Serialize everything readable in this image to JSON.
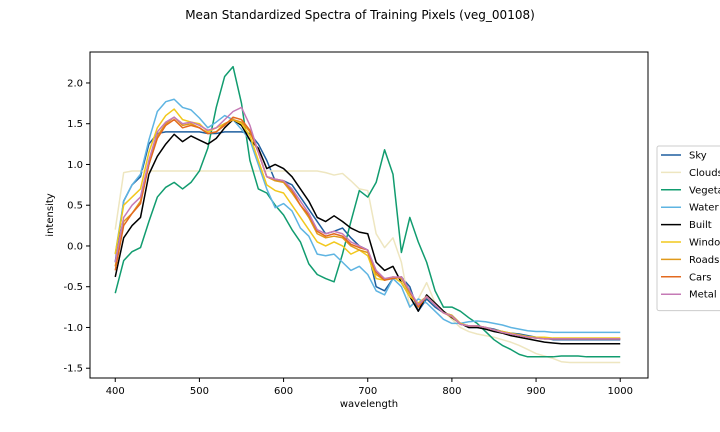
{
  "chart_data": {
    "type": "line",
    "title": "Mean Standardized Spectra of Training Pixels (veg_00108)",
    "xlabel": "wavelength",
    "ylabel": "intensity",
    "xlim": [
      370,
      1033
    ],
    "ylim": [
      -1.62,
      2.38
    ],
    "xticks": [
      400,
      500,
      600,
      700,
      800,
      900,
      1000
    ],
    "yticks": [
      -1.5,
      -1.0,
      -0.5,
      0.0,
      0.5,
      1.0,
      1.5,
      2.0
    ],
    "legend_position": "right",
    "grid": false,
    "x": [
      400,
      410,
      420,
      430,
      440,
      450,
      460,
      470,
      480,
      490,
      500,
      510,
      520,
      530,
      540,
      550,
      560,
      570,
      580,
      590,
      600,
      610,
      620,
      630,
      640,
      650,
      660,
      670,
      680,
      690,
      700,
      710,
      720,
      730,
      740,
      750,
      760,
      770,
      780,
      790,
      800,
      810,
      820,
      830,
      840,
      850,
      860,
      870,
      880,
      890,
      900,
      910,
      920,
      930,
      940,
      950,
      960,
      970,
      980,
      990,
      1000
    ],
    "series": [
      {
        "name": "Sky",
        "color": "#1f5f9f",
        "values": [
          -0.2,
          0.55,
          0.75,
          0.85,
          1.25,
          1.38,
          1.4,
          1.4,
          1.4,
          1.4,
          1.4,
          1.38,
          1.38,
          1.4,
          1.4,
          1.4,
          1.38,
          1.25,
          1.05,
          0.8,
          0.8,
          0.75,
          0.6,
          0.45,
          0.3,
          0.15,
          0.18,
          0.22,
          0.1,
          0.0,
          -0.05,
          -0.5,
          -0.55,
          -0.4,
          -0.38,
          -0.5,
          -0.8,
          -0.65,
          -0.75,
          -0.82,
          -0.85,
          -0.95,
          -1.0,
          -1.0,
          -1.0,
          -1.02,
          -1.05,
          -1.07,
          -1.08,
          -1.1,
          -1.12,
          -1.13,
          -1.15,
          -1.15,
          -1.15,
          -1.15,
          -1.15,
          -1.15,
          -1.15,
          -1.15,
          -1.15
        ]
      },
      {
        "name": "Clouds",
        "color": "#eee6c0",
        "values": [
          0.2,
          0.9,
          0.92,
          0.92,
          0.92,
          0.92,
          0.92,
          0.92,
          0.92,
          0.92,
          0.92,
          0.92,
          0.92,
          0.92,
          0.92,
          0.92,
          0.92,
          0.92,
          0.92,
          0.92,
          0.92,
          0.92,
          0.92,
          0.92,
          0.92,
          0.9,
          0.87,
          0.89,
          0.8,
          0.7,
          0.68,
          0.15,
          -0.02,
          0.1,
          -0.2,
          -0.75,
          -0.65,
          -0.45,
          -0.7,
          -0.8,
          -0.9,
          -1.0,
          -1.05,
          -1.08,
          -1.1,
          -1.12,
          -1.15,
          -1.18,
          -1.22,
          -1.27,
          -1.32,
          -1.35,
          -1.38,
          -1.42,
          -1.43,
          -1.43,
          -1.43,
          -1.43,
          -1.43,
          -1.43,
          -1.43
        ]
      },
      {
        "name": "Vegetation",
        "color": "#119c6f",
        "values": [
          -0.58,
          -0.18,
          -0.07,
          -0.02,
          0.3,
          0.6,
          0.72,
          0.78,
          0.7,
          0.78,
          0.92,
          1.2,
          1.7,
          2.08,
          2.2,
          1.75,
          1.05,
          0.7,
          0.65,
          0.5,
          0.38,
          0.2,
          0.05,
          -0.22,
          -0.35,
          -0.4,
          -0.44,
          -0.1,
          0.3,
          0.68,
          0.6,
          0.78,
          1.18,
          0.88,
          -0.08,
          0.35,
          0.05,
          -0.2,
          -0.55,
          -0.75,
          -0.75,
          -0.8,
          -0.88,
          -0.95,
          -1.05,
          -1.15,
          -1.22,
          -1.27,
          -1.33,
          -1.36,
          -1.36,
          -1.36,
          -1.36,
          -1.35,
          -1.35,
          -1.35,
          -1.36,
          -1.36,
          -1.36,
          -1.36,
          -1.36
        ]
      },
      {
        "name": "Water",
        "color": "#5eb4e2",
        "values": [
          -0.1,
          0.55,
          0.75,
          0.88,
          1.3,
          1.65,
          1.77,
          1.8,
          1.7,
          1.67,
          1.57,
          1.45,
          1.52,
          1.6,
          1.55,
          1.43,
          1.3,
          1.0,
          0.7,
          0.47,
          0.52,
          0.43,
          0.22,
          0.12,
          -0.1,
          -0.12,
          -0.1,
          -0.2,
          -0.3,
          -0.25,
          -0.35,
          -0.55,
          -0.6,
          -0.4,
          -0.5,
          -0.75,
          -0.65,
          -0.7,
          -0.8,
          -0.9,
          -0.95,
          -0.95,
          -0.93,
          -0.92,
          -0.93,
          -0.95,
          -0.97,
          -1.0,
          -1.02,
          -1.04,
          -1.05,
          -1.05,
          -1.06,
          -1.06,
          -1.06,
          -1.06,
          -1.06,
          -1.06,
          -1.06,
          -1.06,
          -1.06
        ]
      },
      {
        "name": "Built",
        "color": "#000000",
        "values": [
          -0.38,
          0.1,
          0.25,
          0.35,
          0.88,
          1.1,
          1.25,
          1.37,
          1.28,
          1.35,
          1.3,
          1.25,
          1.32,
          1.45,
          1.55,
          1.48,
          1.3,
          1.2,
          0.95,
          1.0,
          0.95,
          0.85,
          0.7,
          0.55,
          0.35,
          0.3,
          0.37,
          0.3,
          0.22,
          0.17,
          0.15,
          -0.2,
          -0.3,
          -0.25,
          -0.45,
          -0.62,
          -0.8,
          -0.6,
          -0.7,
          -0.8,
          -0.88,
          -0.95,
          -1.0,
          -1.0,
          -1.02,
          -1.05,
          -1.07,
          -1.1,
          -1.12,
          -1.14,
          -1.16,
          -1.18,
          -1.19,
          -1.2,
          -1.2,
          -1.2,
          -1.2,
          -1.2,
          -1.2,
          -1.2,
          -1.2
        ]
      },
      {
        "name": "Windows",
        "color": "#f2c81d",
        "values": [
          -0.1,
          0.5,
          0.6,
          0.7,
          1.15,
          1.45,
          1.6,
          1.68,
          1.55,
          1.52,
          1.5,
          1.4,
          1.45,
          1.5,
          1.55,
          1.5,
          1.35,
          1.05,
          0.75,
          0.68,
          0.65,
          0.5,
          0.35,
          0.2,
          0.05,
          0.0,
          0.05,
          0.0,
          -0.1,
          -0.05,
          -0.12,
          -0.4,
          -0.42,
          -0.38,
          -0.45,
          -0.62,
          -0.7,
          -0.62,
          -0.72,
          -0.82,
          -0.85,
          -0.95,
          -0.98,
          -0.98,
          -1.0,
          -1.03,
          -1.05,
          -1.07,
          -1.09,
          -1.11,
          -1.12,
          -1.12,
          -1.13,
          -1.13,
          -1.13,
          -1.13,
          -1.13,
          -1.13,
          -1.13,
          -1.13,
          -1.13
        ]
      },
      {
        "name": "Roads",
        "color": "#e09a1b",
        "values": [
          -0.25,
          0.3,
          0.4,
          0.55,
          1.0,
          1.35,
          1.5,
          1.58,
          1.48,
          1.5,
          1.45,
          1.38,
          1.4,
          1.5,
          1.55,
          1.52,
          1.4,
          1.15,
          0.85,
          0.8,
          0.78,
          0.65,
          0.5,
          0.35,
          0.15,
          0.1,
          0.12,
          0.1,
          0.0,
          -0.05,
          -0.08,
          -0.35,
          -0.42,
          -0.38,
          -0.4,
          -0.58,
          -0.72,
          -0.62,
          -0.72,
          -0.82,
          -0.87,
          -0.96,
          -0.98,
          -0.98,
          -1.0,
          -1.03,
          -1.06,
          -1.08,
          -1.1,
          -1.12,
          -1.13,
          -1.14,
          -1.14,
          -1.14,
          -1.14,
          -1.14,
          -1.14,
          -1.14,
          -1.14,
          -1.14,
          -1.14
        ]
      },
      {
        "name": "Cars",
        "color": "#e36a1f",
        "values": [
          -0.3,
          0.25,
          0.4,
          0.52,
          1.0,
          1.32,
          1.48,
          1.55,
          1.45,
          1.48,
          1.45,
          1.38,
          1.4,
          1.48,
          1.58,
          1.55,
          1.42,
          1.15,
          0.85,
          0.82,
          0.8,
          0.68,
          0.5,
          0.38,
          0.18,
          0.12,
          0.15,
          0.12,
          0.02,
          -0.02,
          -0.05,
          -0.32,
          -0.42,
          -0.4,
          -0.38,
          -0.55,
          -0.75,
          -0.62,
          -0.72,
          -0.82,
          -0.86,
          -0.96,
          -0.98,
          -0.98,
          -1.0,
          -1.03,
          -1.06,
          -1.08,
          -1.1,
          -1.12,
          -1.13,
          -1.14,
          -1.14,
          -1.14,
          -1.14,
          -1.14,
          -1.14,
          -1.14,
          -1.14,
          -1.14,
          -1.14
        ]
      },
      {
        "name": "Metal",
        "color": "#c57ab6",
        "values": [
          -0.2,
          0.35,
          0.5,
          0.6,
          1.05,
          1.4,
          1.52,
          1.58,
          1.5,
          1.52,
          1.48,
          1.42,
          1.45,
          1.55,
          1.65,
          1.7,
          1.48,
          1.15,
          0.85,
          0.82,
          0.8,
          0.7,
          0.55,
          0.4,
          0.2,
          0.15,
          0.18,
          0.15,
          0.05,
          0.0,
          -0.05,
          -0.3,
          -0.4,
          -0.38,
          -0.38,
          -0.55,
          -0.72,
          -0.62,
          -0.72,
          -0.82,
          -0.86,
          -0.96,
          -0.98,
          -0.98,
          -1.0,
          -1.03,
          -1.06,
          -1.08,
          -1.1,
          -1.12,
          -1.13,
          -1.14,
          -1.14,
          -1.14,
          -1.14,
          -1.14,
          -1.14,
          -1.14,
          -1.14,
          -1.14,
          -1.14
        ]
      }
    ]
  }
}
